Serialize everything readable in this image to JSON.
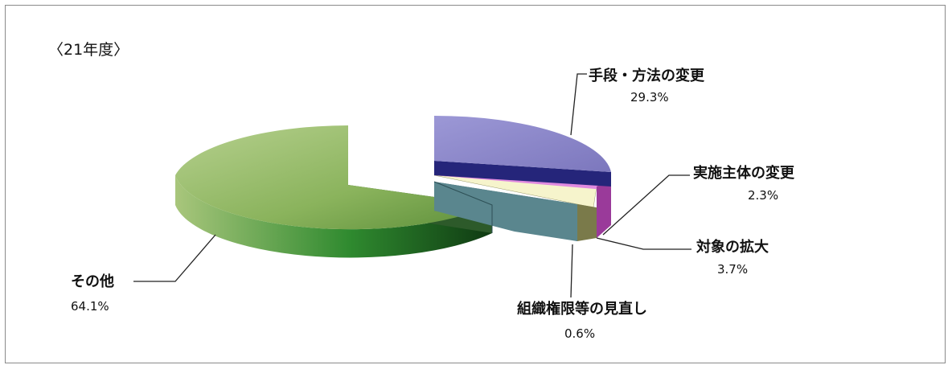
{
  "chart_data": {
    "type": "pie",
    "title": "〈21年度〉",
    "slices": [
      {
        "name": "手段・方法の変更",
        "value": 29.3,
        "label": "29.3%",
        "color": "#8a86c6",
        "side": "#2a2a80",
        "exploded": true
      },
      {
        "name": "実施主体の変更",
        "value": 2.3,
        "label": "2.3%",
        "color": "#d86ad8",
        "side": "#7a2a7a",
        "exploded": false
      },
      {
        "name": "対象の拡大",
        "value": 3.7,
        "label": "3.7%",
        "color": "#f5f3c8",
        "side": "#8a8a55",
        "exploded": false
      },
      {
        "name": "組織権限等の見直し",
        "value": 0.6,
        "label": "0.6%",
        "color": "#4f7a82",
        "side": "#3a5c62",
        "exploded": false
      },
      {
        "name": "その他",
        "value": 64.1,
        "label": "64.1%",
        "color": "#9cbb6c",
        "side": "#3f7a2a",
        "exploded": true
      }
    ]
  }
}
